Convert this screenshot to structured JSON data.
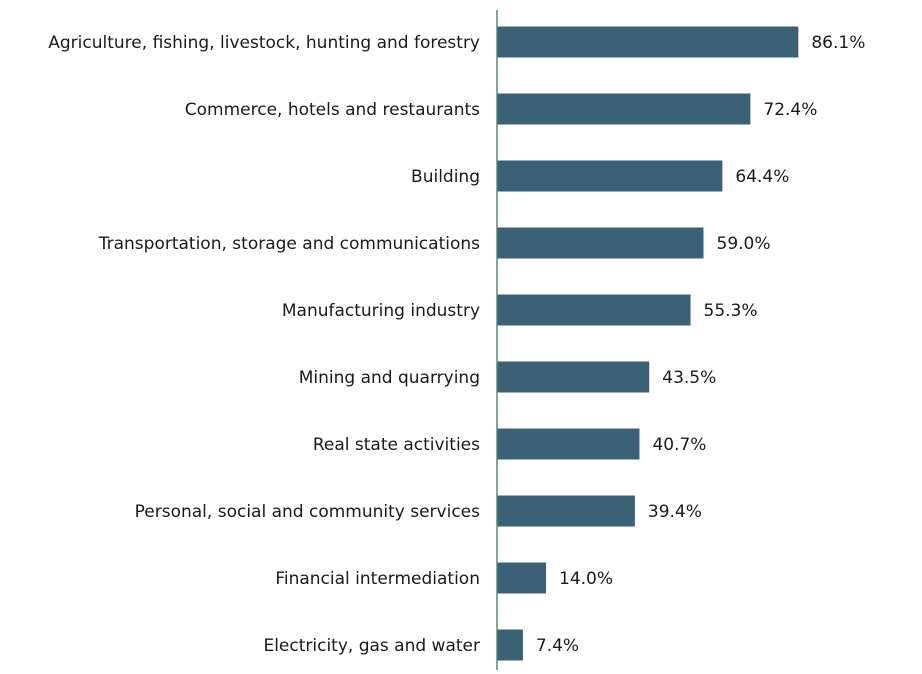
{
  "chart_data": {
    "type": "bar",
    "orientation": "horizontal",
    "title": "",
    "xlabel": "",
    "ylabel": "",
    "categories": [
      "Agriculture, fishing, livestock, hunting and forestry",
      "Commerce, hotels and restaurants",
      "Building",
      "Transportation, storage and communications",
      "Manufacturing industry",
      "Mining and quarrying",
      "Real state activities",
      "Personal, social and community services",
      "Financial intermediation",
      "Electricity, gas and water"
    ],
    "values": [
      86.1,
      72.4,
      64.4,
      59.0,
      55.3,
      43.5,
      40.7,
      39.4,
      14.0,
      7.4
    ],
    "value_labels": [
      "86.1%",
      "72.4%",
      "64.4%",
      "59.0%",
      "55.3%",
      "43.5%",
      "40.7%",
      "39.4%",
      "14.0%",
      "7.4%"
    ],
    "unit": "%",
    "xlim": [
      0,
      100
    ],
    "grid": false,
    "legend": "none",
    "bar_color": "#3a6175",
    "axis_color": "#5a8a7a"
  }
}
